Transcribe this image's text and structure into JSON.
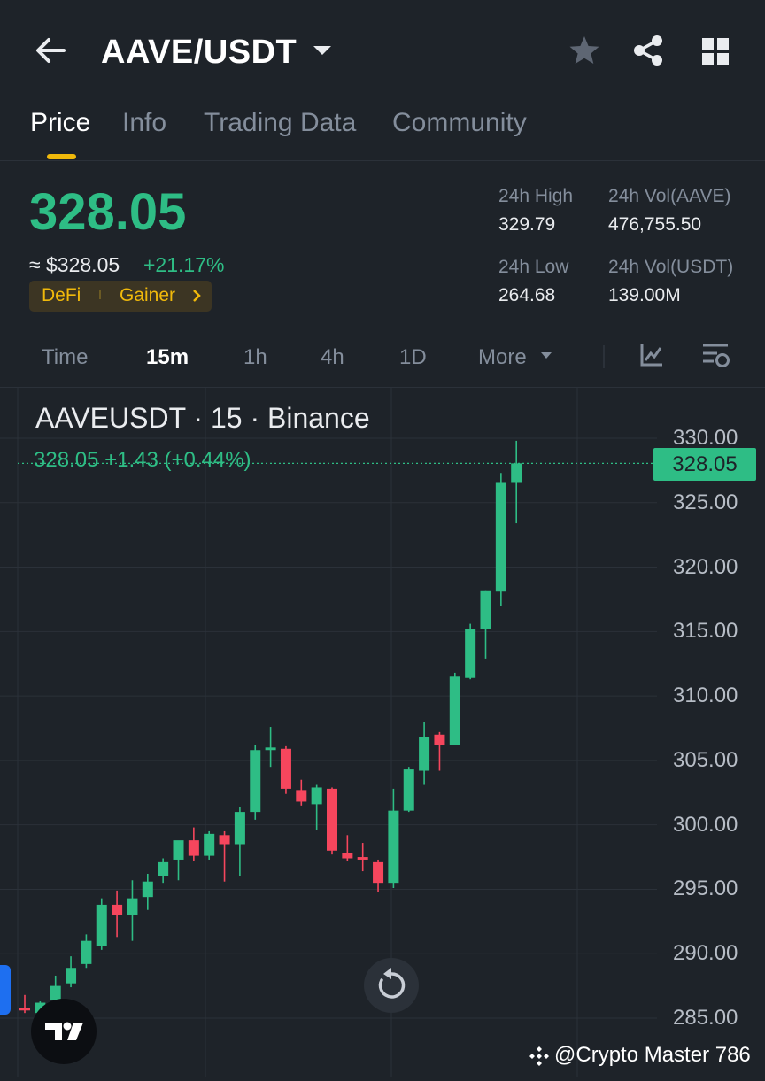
{
  "header": {
    "back_icon": "arrow-left-icon",
    "title": "AAVE/USDT",
    "dropdown_icon": "caret-down-icon",
    "star_icon": "star-icon",
    "share_icon": "share-icon",
    "menu_icon": "grid-icon"
  },
  "tabs": [
    {
      "label": "Price"
    },
    {
      "label": "Info"
    },
    {
      "label": "Trading Data"
    },
    {
      "label": "Community"
    }
  ],
  "ticker": {
    "last_price": "328.05",
    "usd_price": "≈ $328.05",
    "change_pct": "+21.17%",
    "tag_sector": "DeFi",
    "tag_gainer": "Gainer"
  },
  "stats": {
    "high_label": "24h High",
    "high_value": "329.79",
    "vol_base_label": "24h Vol(AAVE)",
    "vol_base_value": "476,755.50",
    "low_label": "24h Low",
    "low_value": "264.68",
    "vol_quote_label": "24h Vol(USDT)",
    "vol_quote_value": "139.00M"
  },
  "intervals": [
    {
      "label": "Time"
    },
    {
      "label": "15m"
    },
    {
      "label": "1h"
    },
    {
      "label": "4h"
    },
    {
      "label": "1D"
    },
    {
      "label": "More"
    }
  ],
  "interval_selected": "15m",
  "chart_header": {
    "title": "AAVEUSDT · 15 · Binance",
    "subtitle": "328.05 +1.43 (+0.44%)",
    "last_price_tag": "328.05"
  },
  "colors": {
    "up": "#2ebd85",
    "down": "#f6465d",
    "accent": "#f0b90b",
    "background": "#1e2329"
  },
  "watermark": "@Crypto Master 786",
  "chart_data": {
    "type": "candlestick",
    "interval": "15m",
    "ylim": [
      284,
      331
    ],
    "y_ticks": [
      "330.00",
      "325.00",
      "320.00",
      "315.00",
      "310.00",
      "305.00",
      "300.00",
      "295.00",
      "290.00",
      "285.00"
    ],
    "candles": [
      {
        "o": 285.8,
        "h": 286.8,
        "l": 285.4,
        "c": 285.6
      },
      {
        "o": 285.4,
        "h": 286.3,
        "l": 284.6,
        "c": 286.2
      },
      {
        "o": 286.4,
        "h": 288.3,
        "l": 286.1,
        "c": 287.5
      },
      {
        "o": 287.7,
        "h": 289.8,
        "l": 287.4,
        "c": 288.9
      },
      {
        "o": 289.2,
        "h": 291.5,
        "l": 288.9,
        "c": 291.0
      },
      {
        "o": 290.6,
        "h": 294.3,
        "l": 290.3,
        "c": 293.8
      },
      {
        "o": 293.8,
        "h": 294.9,
        "l": 291.3,
        "c": 293.0
      },
      {
        "o": 293.0,
        "h": 295.7,
        "l": 291.0,
        "c": 294.3
      },
      {
        "o": 294.4,
        "h": 296.2,
        "l": 293.4,
        "c": 295.6
      },
      {
        "o": 296.0,
        "h": 297.4,
        "l": 295.5,
        "c": 297.1
      },
      {
        "o": 297.3,
        "h": 298.6,
        "l": 295.7,
        "c": 298.8
      },
      {
        "o": 298.8,
        "h": 299.8,
        "l": 297.2,
        "c": 297.6
      },
      {
        "o": 297.6,
        "h": 299.5,
        "l": 297.3,
        "c": 299.3
      },
      {
        "o": 299.2,
        "h": 299.5,
        "l": 295.6,
        "c": 298.5
      },
      {
        "o": 298.5,
        "h": 301.4,
        "l": 296.0,
        "c": 301.0
      },
      {
        "o": 301.0,
        "h": 306.2,
        "l": 300.4,
        "c": 305.8
      },
      {
        "o": 305.8,
        "h": 307.6,
        "l": 304.5,
        "c": 306.0
      },
      {
        "o": 305.9,
        "h": 306.1,
        "l": 302.4,
        "c": 302.8
      },
      {
        "o": 302.7,
        "h": 303.5,
        "l": 301.5,
        "c": 301.8
      },
      {
        "o": 301.6,
        "h": 303.1,
        "l": 299.6,
        "c": 302.9
      },
      {
        "o": 302.8,
        "h": 302.9,
        "l": 297.7,
        "c": 298.0
      },
      {
        "o": 297.8,
        "h": 299.2,
        "l": 297.2,
        "c": 297.4
      },
      {
        "o": 297.5,
        "h": 298.6,
        "l": 296.4,
        "c": 297.3
      },
      {
        "o": 297.1,
        "h": 297.3,
        "l": 294.8,
        "c": 295.5
      },
      {
        "o": 295.5,
        "h": 302.8,
        "l": 295.1,
        "c": 301.1
      },
      {
        "o": 301.1,
        "h": 304.5,
        "l": 301.0,
        "c": 304.3
      },
      {
        "o": 304.2,
        "h": 308.0,
        "l": 303.1,
        "c": 306.8
      },
      {
        "o": 307.0,
        "h": 307.2,
        "l": 304.2,
        "c": 306.2
      },
      {
        "o": 306.2,
        "h": 311.8,
        "l": 306.2,
        "c": 311.5
      },
      {
        "o": 311.4,
        "h": 315.6,
        "l": 311.3,
        "c": 315.2
      },
      {
        "o": 315.2,
        "h": 318.2,
        "l": 312.9,
        "c": 318.2
      },
      {
        "o": 318.1,
        "h": 327.3,
        "l": 317.0,
        "c": 326.6
      },
      {
        "o": 326.6,
        "h": 329.8,
        "l": 323.4,
        "c": 328.05
      }
    ]
  }
}
